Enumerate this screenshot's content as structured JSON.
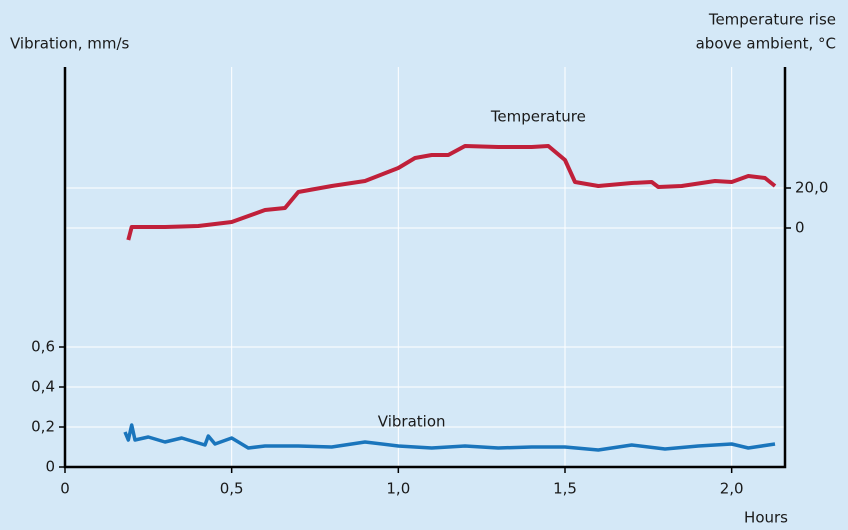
{
  "chart_data": {
    "type": "line",
    "ylabel": "Vibration, mm/s",
    "y2label": [
      "Temperature rise",
      "above ambient, °C"
    ],
    "xlabel": "Hours",
    "xlim": [
      0,
      2.16
    ],
    "xticks": [
      0,
      {
        "value": 0.5,
        "label": "0,5"
      },
      {
        "value": 1.0,
        "label": "1,0"
      },
      {
        "value": 1.5,
        "label": "1,5"
      },
      {
        "value": 2.0,
        "label": "2,0"
      }
    ],
    "ylim": [
      0,
      2.0
    ],
    "yticks": [
      0,
      {
        "value": 0.2,
        "label": "0,2"
      },
      {
        "value": 0.4,
        "label": "0,4"
      },
      {
        "value": 0.6,
        "label": "0,6"
      }
    ],
    "y2lim": [
      -119.5,
      80.5
    ],
    "y2ticks": [
      0,
      {
        "value": 20,
        "label": "20,0"
      }
    ],
    "grid": true,
    "series": [
      {
        "name": "Temperature",
        "color": "#c0203a",
        "axis": "y2",
        "x": [
          0.19,
          0.2,
          0.3,
          0.4,
          0.5,
          0.6,
          0.66,
          0.7,
          0.8,
          0.9,
          1.0,
          1.05,
          1.1,
          1.15,
          1.2,
          1.3,
          1.4,
          1.45,
          1.5,
          1.53,
          1.6,
          1.7,
          1.76,
          1.78,
          1.85,
          1.95,
          2.0,
          2.05,
          2.1,
          2.13
        ],
        "values": [
          -6,
          0.5,
          0.5,
          1,
          3,
          9,
          10,
          18,
          21,
          23.5,
          30,
          35,
          36.5,
          36.5,
          41,
          40.5,
          40.5,
          41,
          34,
          23,
          21,
          22.5,
          23,
          20.5,
          21,
          23.5,
          23,
          26,
          25,
          21
        ]
      },
      {
        "name": "Vibration",
        "color": "#1a75bc",
        "axis": "y",
        "x": [
          0.18,
          0.19,
          0.2,
          0.21,
          0.25,
          0.3,
          0.35,
          0.42,
          0.43,
          0.45,
          0.5,
          0.55,
          0.6,
          0.7,
          0.8,
          0.9,
          1.0,
          1.1,
          1.2,
          1.3,
          1.4,
          1.5,
          1.6,
          1.7,
          1.8,
          1.9,
          2.0,
          2.05,
          2.13
        ],
        "values": [
          0.175,
          0.135,
          0.21,
          0.135,
          0.15,
          0.125,
          0.145,
          0.11,
          0.155,
          0.115,
          0.145,
          0.095,
          0.105,
          0.105,
          0.1,
          0.125,
          0.105,
          0.095,
          0.105,
          0.095,
          0.1,
          0.1,
          0.085,
          0.11,
          0.09,
          0.105,
          0.115,
          0.095,
          0.115
        ]
      }
    ]
  }
}
